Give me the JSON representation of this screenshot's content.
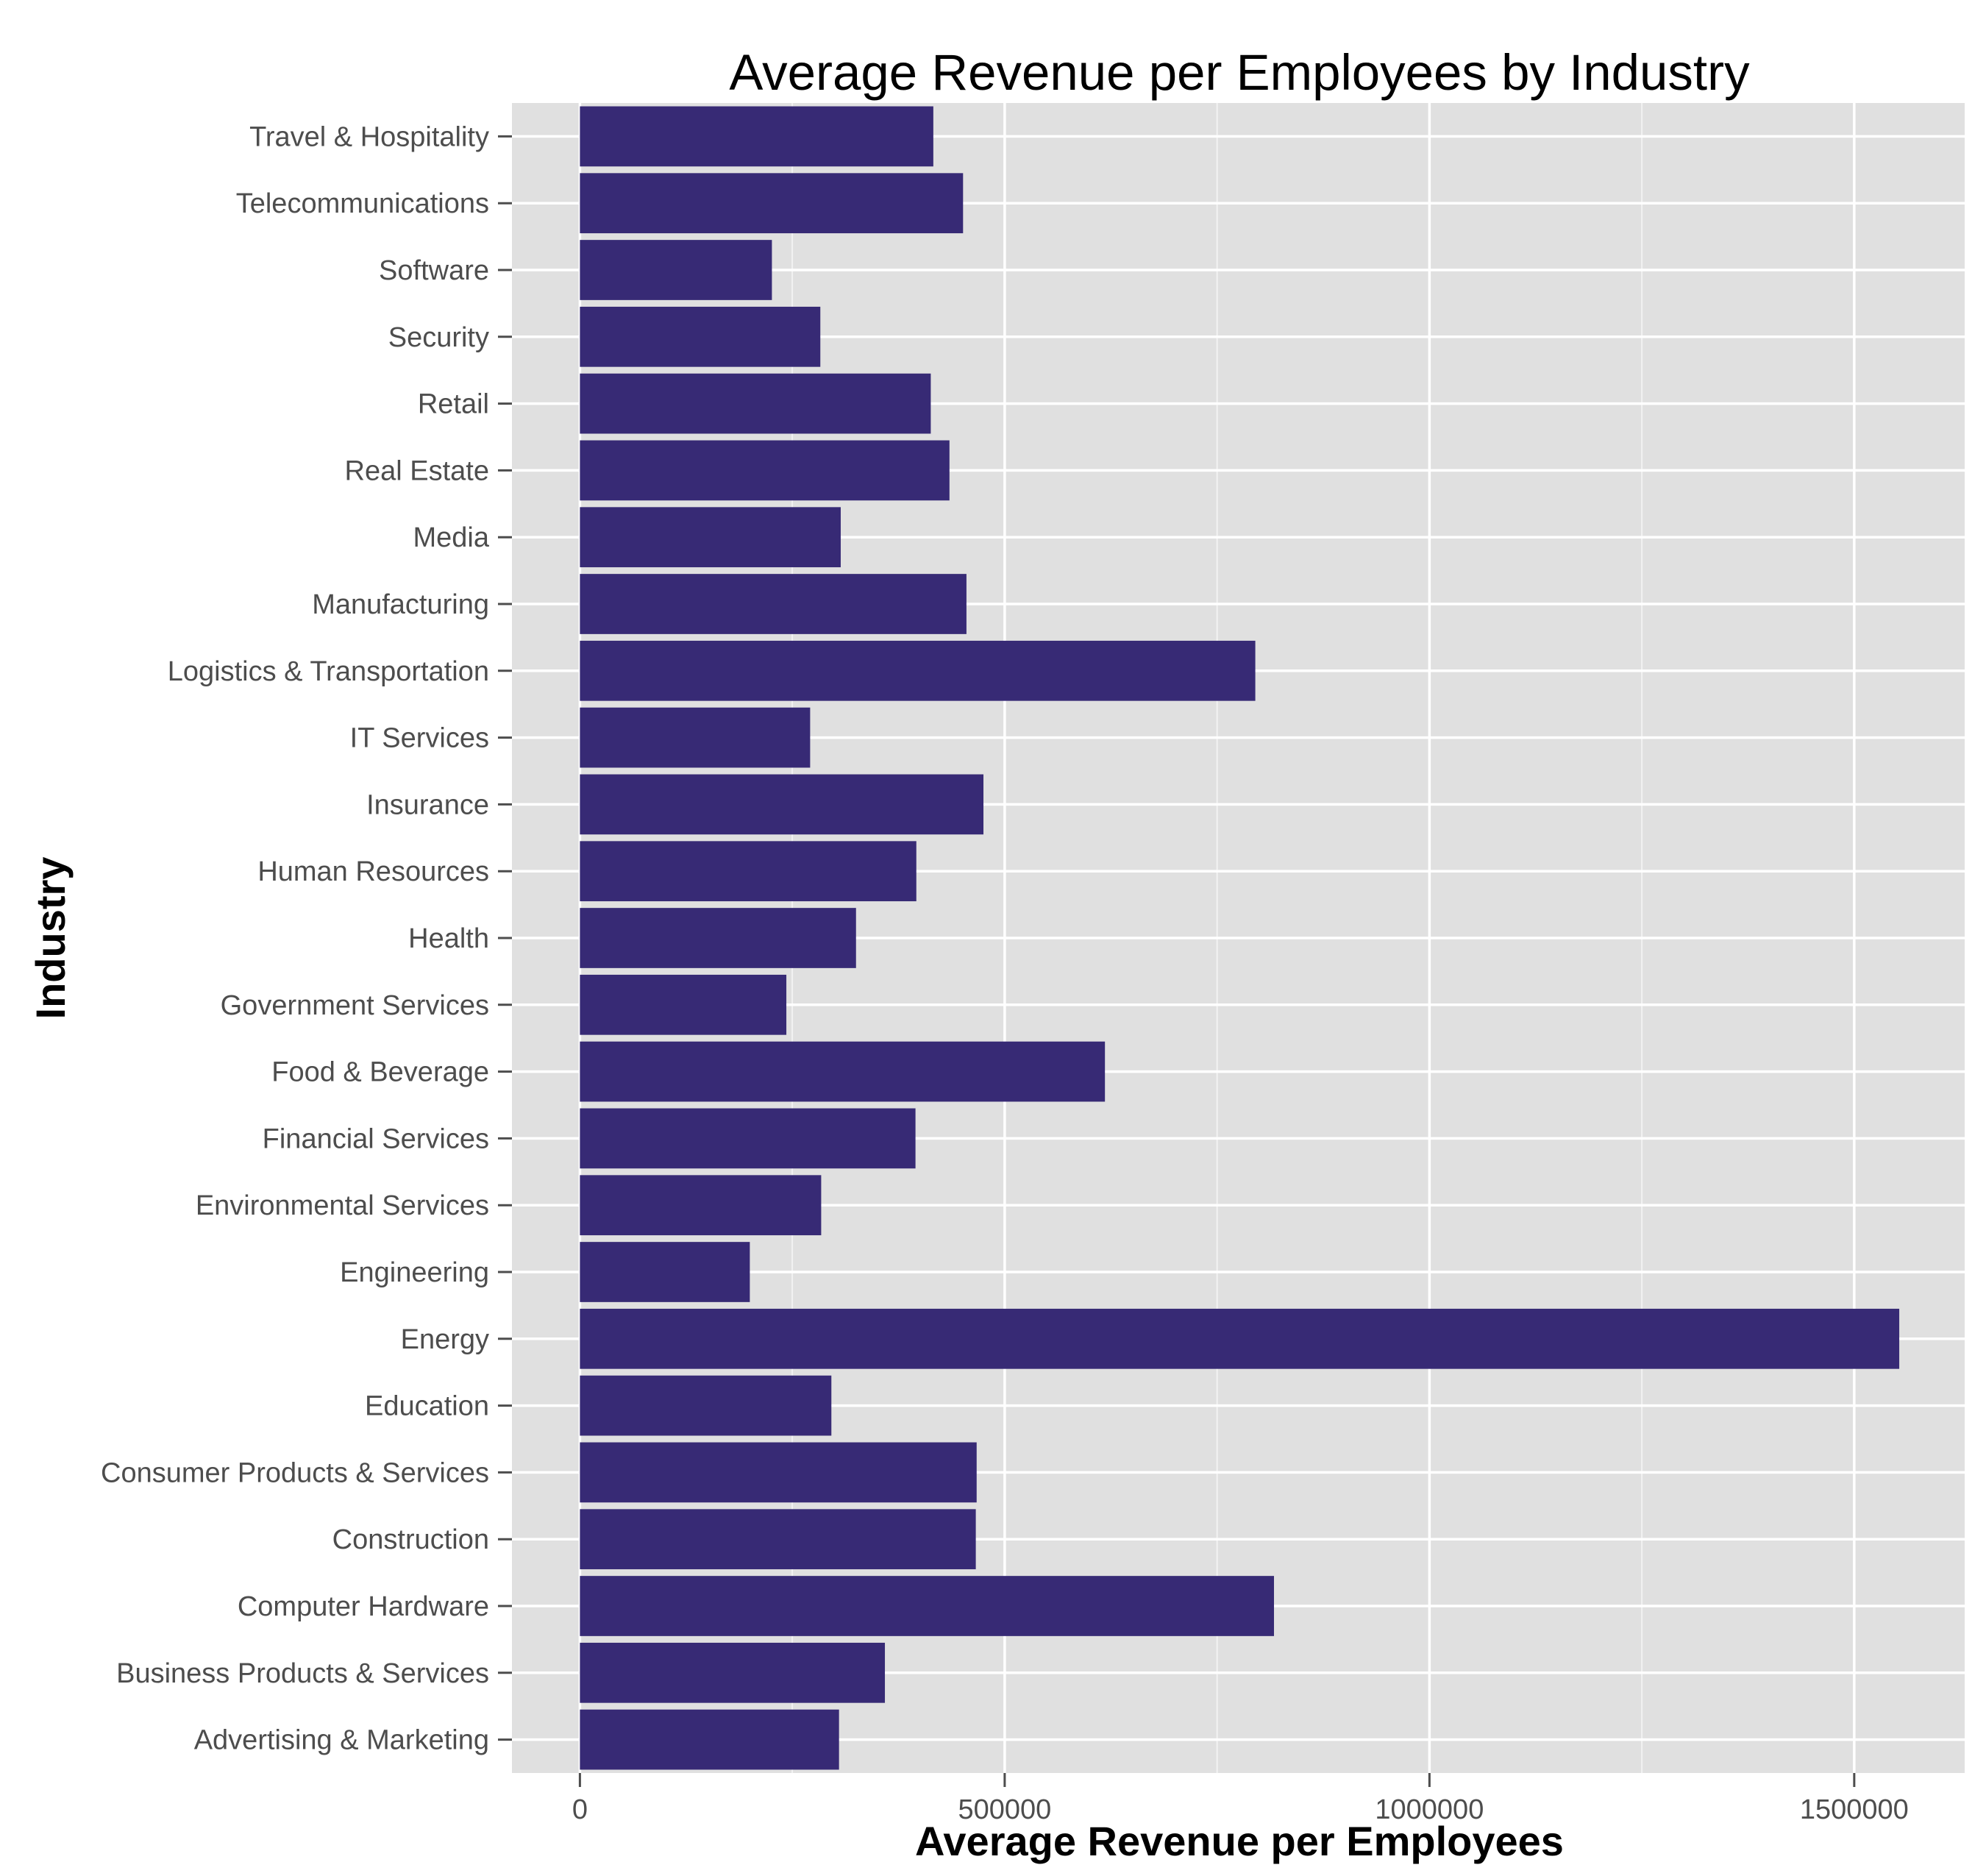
{
  "chart_data": {
    "type": "bar",
    "orientation": "horizontal",
    "title": "Average Revenue per Employees by Industry",
    "xlabel": "Average Revenue per Employees",
    "ylabel": "Industry",
    "xlim": [
      -80000,
      1630000
    ],
    "xticks": [
      0,
      500000,
      1000000,
      1500000
    ],
    "xtick_labels": [
      "0",
      "500000",
      "1000000",
      "1500000"
    ],
    "grid": true,
    "colors": {
      "bar": "#372a75",
      "panel": "#e0e0e0",
      "grid": "#ffffff"
    },
    "categories": [
      "Advertising & Marketing",
      "Business Products & Services",
      "Computer Hardware",
      "Construction",
      "Consumer Products & Services",
      "Education",
      "Energy",
      "Engineering",
      "Environmental Services",
      "Financial Services",
      "Food & Beverage",
      "Government Services",
      "Health",
      "Human Resources",
      "Insurance",
      "IT Services",
      "Logistics & Transportation",
      "Manufacturing",
      "Media",
      "Real Estate",
      "Retail",
      "Security",
      "Software",
      "Telecommunications",
      "Travel & Hospitality"
    ],
    "values": [
      305000,
      359000,
      817000,
      466000,
      467000,
      296000,
      1553000,
      200000,
      284000,
      395000,
      618000,
      243000,
      325000,
      396000,
      475000,
      271000,
      795000,
      455000,
      307000,
      435000,
      413000,
      283000,
      226000,
      451000,
      416000
    ]
  }
}
